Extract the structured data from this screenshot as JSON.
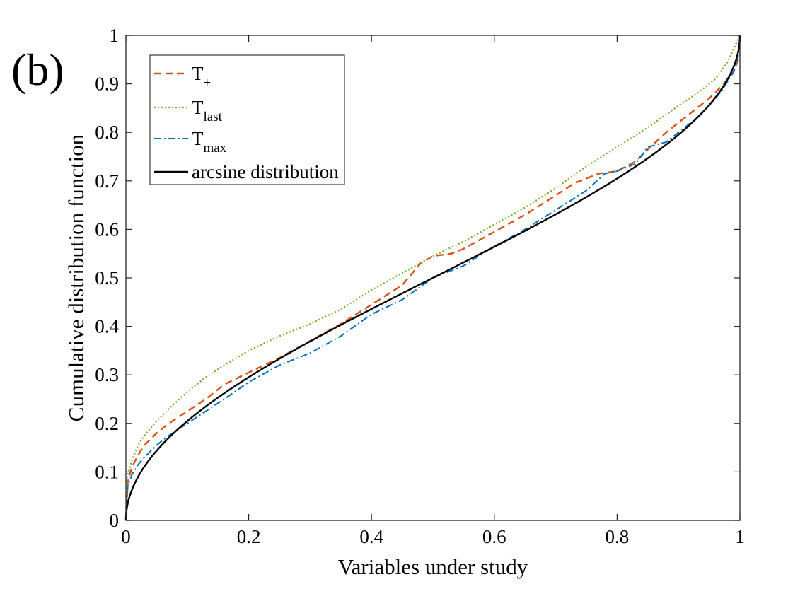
{
  "panel_label": "(b)",
  "chart_data": {
    "type": "line",
    "title": "",
    "xlabel": "Variables under study",
    "ylabel": "Cumulative distribution function",
    "xlim": [
      0,
      1
    ],
    "ylim": [
      0,
      1
    ],
    "grid": false,
    "legend_position": "top-left",
    "xticks": [
      0,
      0.2,
      0.4,
      0.6,
      0.8,
      1
    ],
    "yticks": [
      0,
      0.1,
      0.2,
      0.3,
      0.4,
      0.5,
      0.6,
      0.7,
      0.8,
      0.9,
      1
    ],
    "xtick_labels": [
      "0",
      "0.2",
      "0.4",
      "0.6",
      "0.8",
      "1"
    ],
    "ytick_labels": [
      "0",
      "0.1",
      "0.2",
      "0.3",
      "0.4",
      "0.5",
      "0.6",
      "0.7",
      "0.8",
      "0.9",
      "1"
    ],
    "series": [
      {
        "name": "T+",
        "legend_base": "T",
        "legend_sub": "+",
        "color": "#d95319",
        "dash": "dashed",
        "x": [
          0,
          0.003,
          0.01,
          0.02,
          0.03,
          0.05,
          0.07,
          0.1,
          0.13,
          0.16,
          0.2,
          0.25,
          0.3,
          0.35,
          0.4,
          0.45,
          0.48,
          0.5,
          0.53,
          0.55,
          0.6,
          0.65,
          0.7,
          0.73,
          0.77,
          0.8,
          0.83,
          0.85,
          0.88,
          0.9,
          0.93,
          0.95,
          0.97,
          0.99,
          1
        ],
        "y": [
          0,
          0.08,
          0.11,
          0.135,
          0.155,
          0.18,
          0.2,
          0.225,
          0.25,
          0.28,
          0.305,
          0.335,
          0.37,
          0.405,
          0.445,
          0.485,
          0.53,
          0.545,
          0.55,
          0.56,
          0.595,
          0.63,
          0.67,
          0.695,
          0.715,
          0.72,
          0.74,
          0.765,
          0.8,
          0.82,
          0.85,
          0.87,
          0.895,
          0.925,
          0.96
        ]
      },
      {
        "name": "Tlast",
        "legend_base": "T",
        "legend_sub": "last",
        "color": "#77ac30",
        "dash": "dotted",
        "x": [
          0,
          0.002,
          0.01,
          0.02,
          0.03,
          0.05,
          0.07,
          0.1,
          0.13,
          0.16,
          0.2,
          0.25,
          0.3,
          0.35,
          0.4,
          0.45,
          0.5,
          0.55,
          0.6,
          0.65,
          0.7,
          0.75,
          0.8,
          0.85,
          0.9,
          0.93,
          0.96,
          0.98,
          1
        ],
        "y": [
          0,
          0.09,
          0.125,
          0.155,
          0.175,
          0.205,
          0.23,
          0.265,
          0.295,
          0.32,
          0.35,
          0.38,
          0.405,
          0.435,
          0.475,
          0.51,
          0.545,
          0.575,
          0.61,
          0.645,
          0.685,
          0.73,
          0.77,
          0.81,
          0.855,
          0.88,
          0.91,
          0.945,
          1.0
        ]
      },
      {
        "name": "Tmax",
        "legend_base": "T",
        "legend_sub": "max",
        "color": "#0072bd",
        "dash": "dashdot",
        "x": [
          0,
          0.003,
          0.01,
          0.02,
          0.03,
          0.05,
          0.07,
          0.1,
          0.13,
          0.16,
          0.2,
          0.25,
          0.3,
          0.35,
          0.4,
          0.45,
          0.5,
          0.55,
          0.6,
          0.65,
          0.7,
          0.75,
          0.78,
          0.8,
          0.83,
          0.85,
          0.88,
          0.9,
          0.93,
          0.95,
          0.97,
          0.99,
          1
        ],
        "y": [
          0,
          0.07,
          0.095,
          0.115,
          0.13,
          0.155,
          0.175,
          0.2,
          0.225,
          0.25,
          0.285,
          0.32,
          0.345,
          0.38,
          0.425,
          0.455,
          0.5,
          0.525,
          0.565,
          0.6,
          0.64,
          0.68,
          0.715,
          0.72,
          0.735,
          0.77,
          0.78,
          0.8,
          0.83,
          0.855,
          0.885,
          0.925,
          0.97
        ]
      },
      {
        "name": "arcsine distribution",
        "legend_base": "arcsine distribution",
        "legend_sub": "",
        "color": "#000000",
        "dash": "solid",
        "function": "(2/pi)*arcsin(sqrt(x))"
      }
    ]
  }
}
